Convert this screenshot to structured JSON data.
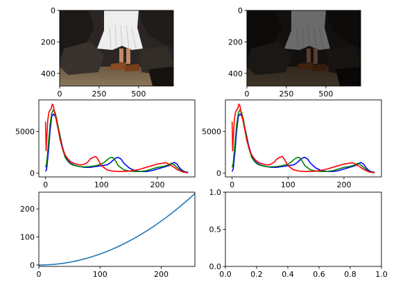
{
  "figure": {
    "background": "#ffffff",
    "colors": {
      "blue": "#0000ff",
      "green": "#008000",
      "red": "#ff0000",
      "curve": "#1f77b4"
    }
  },
  "chart_data": [
    {
      "type": "image",
      "description": "photo of a person in a white pleated skirt and brown strap sandals standing among dark boulders on sand (original)",
      "xticks": [
        "0",
        "250",
        "500"
      ],
      "yticks": [
        "0",
        "200",
        "400"
      ],
      "xlim": [
        0,
        720
      ],
      "ylim": [
        480,
        0
      ],
      "brightness": 1.0
    },
    {
      "type": "image",
      "description": "same photo, darkened / gamma-adjusted version",
      "xticks": [
        "0",
        "250",
        "500"
      ],
      "yticks": [
        "0",
        "200",
        "400"
      ],
      "xlim": [
        0,
        720
      ],
      "ylim": [
        480,
        0
      ],
      "brightness": 0.45
    },
    {
      "type": "line",
      "title": "",
      "xlim": [
        -12,
        267
      ],
      "ylim": [
        -450,
        8800
      ],
      "xticks": [
        "0",
        "100",
        "200"
      ],
      "yticks": [
        "0",
        "5000"
      ],
      "series": [
        {
          "color": "blue",
          "x": [
            0,
            2,
            5,
            8,
            11,
            14,
            17,
            20,
            25,
            30,
            35,
            40,
            45,
            50,
            60,
            70,
            80,
            90,
            100,
            110,
            115,
            120,
            125,
            130,
            135,
            140,
            150,
            160,
            170,
            180,
            190,
            200,
            210,
            215,
            220,
            225,
            230,
            235,
            240,
            245,
            250,
            255
          ],
          "y": [
            200,
            500,
            2500,
            5000,
            6800,
            7100,
            6900,
            6300,
            4800,
            3200,
            2100,
            1500,
            1200,
            1000,
            800,
            700,
            700,
            800,
            900,
            1000,
            1200,
            1500,
            1800,
            1900,
            1700,
            1200,
            600,
            300,
            200,
            200,
            300,
            500,
            700,
            800,
            900,
            1100,
            1300,
            1100,
            600,
            300,
            150,
            100
          ]
        },
        {
          "color": "green",
          "x": [
            0,
            2,
            5,
            8,
            11,
            14,
            17,
            20,
            25,
            30,
            35,
            40,
            45,
            50,
            60,
            70,
            80,
            90,
            95,
            100,
            105,
            110,
            115,
            120,
            125,
            130,
            140,
            150,
            160,
            170,
            180,
            190,
            200,
            210,
            215,
            220,
            225,
            230,
            235,
            240,
            245,
            250,
            255
          ],
          "y": [
            700,
            1200,
            3500,
            5800,
            7200,
            7600,
            7300,
            6500,
            4700,
            3000,
            1900,
            1400,
            1100,
            950,
            800,
            750,
            800,
            900,
            1000,
            1100,
            1300,
            1600,
            1850,
            1900,
            1500,
            900,
            400,
            250,
            200,
            200,
            300,
            500,
            700,
            800,
            900,
            1000,
            1200,
            1000,
            700,
            400,
            200,
            100,
            80
          ]
        },
        {
          "color": "red",
          "x": [
            0,
            1,
            2,
            4,
            6,
            8,
            10,
            12,
            14,
            16,
            18,
            20,
            23,
            26,
            30,
            35,
            40,
            45,
            50,
            55,
            60,
            65,
            70,
            75,
            80,
            85,
            90,
            95,
            100,
            110,
            120,
            130,
            140,
            150,
            160,
            170,
            180,
            190,
            200,
            210,
            215,
            220,
            225,
            230,
            235,
            240,
            245,
            250,
            255
          ],
          "y": [
            6200,
            2700,
            4000,
            6400,
            7300,
            7600,
            7700,
            8300,
            8100,
            7300,
            6800,
            6100,
            5100,
            4000,
            3000,
            2200,
            1700,
            1400,
            1200,
            1100,
            1000,
            1000,
            1100,
            1300,
            1700,
            1900,
            2000,
            1500,
            900,
            400,
            250,
            200,
            200,
            250,
            350,
            500,
            700,
            900,
            1100,
            1200,
            1250,
            1100,
            900,
            700,
            450,
            300,
            150,
            80,
            50
          ]
        }
      ]
    },
    {
      "type": "line",
      "title": "",
      "xlim": [
        -12,
        267
      ],
      "ylim": [
        -450,
        8800
      ],
      "xticks": [
        "0",
        "100",
        "200"
      ],
      "yticks": [
        "0",
        "5000"
      ],
      "series_same_as_previous": true
    },
    {
      "type": "line",
      "title": "",
      "xlim": [
        0,
        255
      ],
      "ylim": [
        -5,
        260
      ],
      "xticks": [
        "0",
        "100",
        "200"
      ],
      "yticks": [
        "0",
        "100",
        "200"
      ],
      "series": [
        {
          "color": "curve",
          "formula": "y = x^2 / 255",
          "x": [
            0,
            25,
            50,
            75,
            100,
            125,
            150,
            175,
            200,
            225,
            255
          ],
          "y": [
            0,
            2.5,
            9.8,
            22.1,
            39.2,
            61.3,
            88.2,
            120.1,
            156.9,
            198.5,
            255
          ]
        }
      ]
    },
    {
      "type": "empty",
      "xlim": [
        0,
        1
      ],
      "ylim": [
        0,
        1
      ],
      "xticks": [
        "0.0",
        "0.2",
        "0.4",
        "0.6",
        "0.8",
        "1.0"
      ],
      "yticks": [
        "0.0",
        "0.5",
        "1.0"
      ]
    }
  ]
}
